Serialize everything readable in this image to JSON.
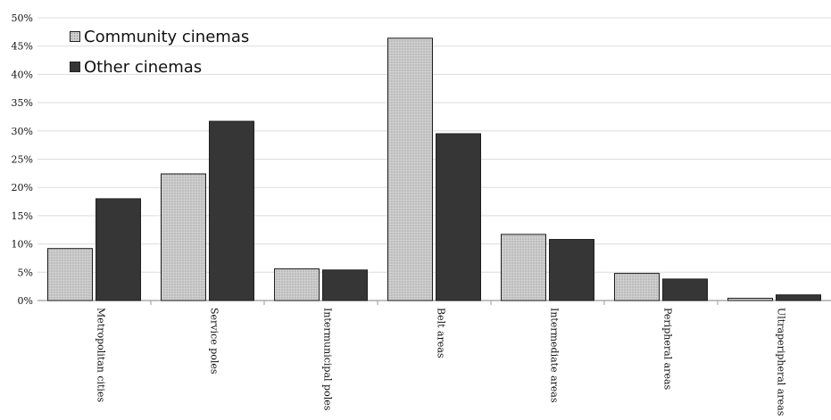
{
  "colors": {
    "community_fill": "#cfcfcf",
    "community_dots": "#8d8d8d",
    "other_fill": "#363636",
    "grid": "#dcdcdc",
    "axis": "#9a9a9a",
    "text": "#111111"
  },
  "chart_data": {
    "type": "bar",
    "categories": [
      "Metropolitan cities",
      "Service poles",
      "Intermunicipal poles",
      "Belt areas",
      "Intermediate areas",
      "Peripheral areas",
      "Ultraperipheral areas"
    ],
    "series": [
      {
        "name": "Community cinemas",
        "values": [
          9.2,
          22.4,
          5.6,
          46.4,
          11.7,
          4.8,
          0.4
        ]
      },
      {
        "name": "Other cinemas",
        "values": [
          18.0,
          31.7,
          5.4,
          29.5,
          10.8,
          3.8,
          1.0
        ]
      }
    ],
    "ylim": [
      0,
      50
    ],
    "yticks": [
      "0%",
      "5%",
      "10%",
      "15%",
      "20%",
      "25%",
      "30%",
      "35%",
      "40%",
      "45%",
      "50%"
    ],
    "grid": true,
    "legend_position": "top-left"
  }
}
